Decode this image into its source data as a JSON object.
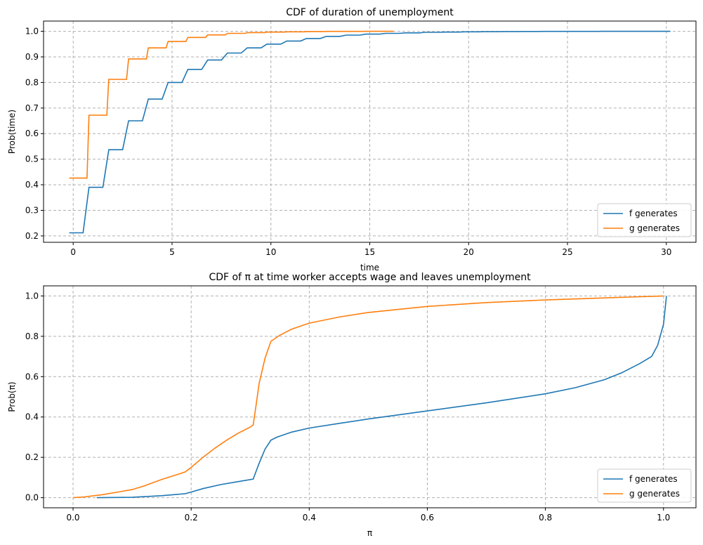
{
  "chart_data": [
    {
      "type": "line",
      "title": "CDF of duration of unemployment",
      "xlabel": "time",
      "ylabel": "Prob(time)",
      "xlim": [
        -1.5,
        31.5
      ],
      "ylim": [
        0.175,
        1.04
      ],
      "xticks": [
        0,
        5,
        10,
        15,
        20,
        25,
        30
      ],
      "yticks": [
        0.2,
        0.3,
        0.4,
        0.5,
        0.6,
        0.7,
        0.8,
        0.9,
        1.0
      ],
      "grid": true,
      "legend": "lower-right",
      "step": true,
      "series": [
        {
          "name": "f generates",
          "color": "#1f77b4",
          "x": [
            0,
            1,
            2,
            3,
            4,
            5,
            6,
            7,
            8,
            9,
            10,
            11,
            12,
            13,
            14,
            15,
            16,
            17,
            18,
            19,
            20,
            21,
            22,
            23,
            24,
            25,
            26,
            27,
            28,
            29,
            30
          ],
          "y": [
            0.212,
            0.39,
            0.537,
            0.65,
            0.735,
            0.8,
            0.851,
            0.888,
            0.915,
            0.935,
            0.95,
            0.962,
            0.972,
            0.98,
            0.985,
            0.989,
            0.992,
            0.994,
            0.996,
            0.997,
            0.998,
            0.9985,
            0.999,
            0.9993,
            0.9995,
            0.9996,
            0.9997,
            0.9998,
            0.9999,
            0.9999,
            1.0
          ]
        },
        {
          "name": "g generates",
          "color": "#ff7f0e",
          "x": [
            0,
            1,
            2,
            3,
            4,
            5,
            6,
            7,
            8,
            9,
            10,
            11,
            12,
            13,
            14,
            15,
            16
          ],
          "y": [
            0.426,
            0.672,
            0.812,
            0.892,
            0.935,
            0.96,
            0.976,
            0.986,
            0.992,
            0.995,
            0.997,
            0.998,
            0.999,
            0.9995,
            0.9997,
            0.9999,
            1.0
          ]
        }
      ]
    },
    {
      "type": "line",
      "title": "CDF of π at time worker accepts wage and leaves unemployment",
      "xlabel": "π",
      "ylabel": "Prob(π)",
      "xlim": [
        -0.05,
        1.055
      ],
      "ylim": [
        -0.05,
        1.05
      ],
      "xticks": [
        0.0,
        0.2,
        0.4,
        0.6,
        0.8,
        1.0
      ],
      "yticks": [
        0.0,
        0.2,
        0.4,
        0.6,
        0.8,
        1.0
      ],
      "grid": true,
      "legend": "lower-right",
      "step": false,
      "series": [
        {
          "name": "f generates",
          "color": "#1f77b4",
          "x": [
            0.04,
            0.1,
            0.15,
            0.19,
            0.2,
            0.22,
            0.25,
            0.28,
            0.305,
            0.315,
            0.325,
            0.335,
            0.345,
            0.37,
            0.4,
            0.45,
            0.5,
            0.6,
            0.7,
            0.8,
            0.85,
            0.9,
            0.93,
            0.96,
            0.98,
            0.99,
            1.0,
            1.005
          ],
          "y": [
            0.0,
            0.002,
            0.01,
            0.02,
            0.028,
            0.045,
            0.065,
            0.08,
            0.092,
            0.17,
            0.24,
            0.285,
            0.3,
            0.325,
            0.345,
            0.368,
            0.39,
            0.43,
            0.47,
            0.515,
            0.545,
            0.585,
            0.62,
            0.665,
            0.7,
            0.755,
            0.86,
            1.0
          ]
        },
        {
          "name": "g generates",
          "color": "#ff7f0e",
          "x": [
            0,
            0.02,
            0.05,
            0.08,
            0.1,
            0.12,
            0.15,
            0.18,
            0.19,
            0.2,
            0.22,
            0.24,
            0.26,
            0.28,
            0.3,
            0.305,
            0.31,
            0.315,
            0.325,
            0.335,
            0.35,
            0.37,
            0.4,
            0.45,
            0.5,
            0.6,
            0.7,
            0.8,
            0.9,
            1.0
          ],
          "y": [
            0,
            0.004,
            0.015,
            0.03,
            0.04,
            0.058,
            0.09,
            0.118,
            0.128,
            0.15,
            0.2,
            0.245,
            0.285,
            0.32,
            0.35,
            0.36,
            0.46,
            0.565,
            0.69,
            0.775,
            0.805,
            0.835,
            0.865,
            0.895,
            0.918,
            0.948,
            0.967,
            0.98,
            0.99,
            1.0
          ]
        }
      ]
    }
  ]
}
